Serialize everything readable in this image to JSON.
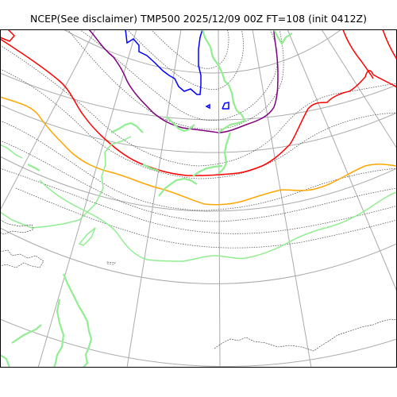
{
  "title": "NCEP(See disclaimer) TMP500 2025/12/09 00Z FT=108 (init 0412Z)",
  "colors": {
    "frame": "#000000",
    "graticule": "#aaaaaa",
    "coastline": "#333333",
    "temperature_contour": "#555555",
    "isotherm_0": "#ff0000",
    "isotherm_minus12": "#ffa500",
    "isotherm_minus24": "#800080",
    "isotherm_minus36": "#0000ff",
    "isotherm_plus12": "#90ee90"
  }
}
